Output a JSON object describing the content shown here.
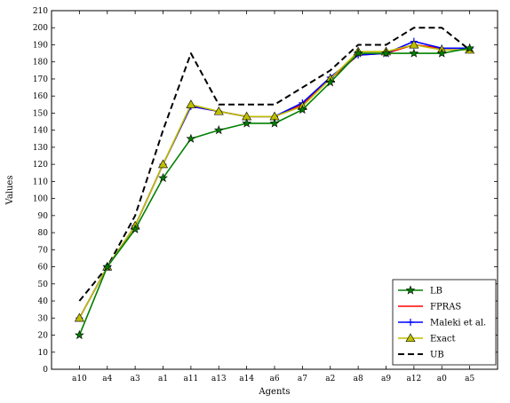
{
  "chart_data": {
    "type": "line",
    "title": "",
    "xlabel": "Agents",
    "ylabel": "Values",
    "categories": [
      "a10",
      "a4",
      "a3",
      "a1",
      "a11",
      "a13",
      "a14",
      "a6",
      "a7",
      "a2",
      "a8",
      "a9",
      "a12",
      "a0",
      "a5"
    ],
    "ylim": [
      0,
      210
    ],
    "yticks": [
      0,
      10,
      20,
      30,
      40,
      50,
      60,
      70,
      80,
      90,
      100,
      110,
      120,
      130,
      140,
      150,
      160,
      170,
      180,
      190,
      200,
      210
    ],
    "grid": false,
    "legend_position": "bottom-right",
    "series": [
      {
        "name": "LB",
        "color": "#008000",
        "marker": "star",
        "dash": "solid",
        "values": [
          20,
          60,
          82,
          112,
          135,
          140,
          144,
          144,
          152,
          168,
          185,
          185,
          185,
          185,
          188
        ]
      },
      {
        "name": "FPRAS",
        "color": "#ff0000",
        "marker": "none",
        "dash": "solid",
        "values": [
          30,
          60,
          84,
          120,
          154,
          151,
          148,
          148,
          155,
          170,
          184,
          185,
          190,
          188,
          188
        ]
      },
      {
        "name": "Maleki et al.",
        "color": "#0000ff",
        "marker": "plus",
        "dash": "solid",
        "values": [
          30,
          60,
          84,
          120,
          154,
          151,
          148,
          148,
          156,
          171,
          184,
          185,
          192,
          188,
          188
        ]
      },
      {
        "name": "Exact",
        "color": "#bfbf00",
        "marker": "triangle",
        "dash": "solid",
        "values": [
          30,
          60,
          84,
          120,
          155,
          151,
          148,
          148,
          154,
          170,
          186,
          186,
          190,
          187,
          187
        ]
      },
      {
        "name": "UB",
        "color": "#000000",
        "marker": "none",
        "dash": "dashed",
        "values": [
          40,
          60,
          90,
          140,
          185,
          155,
          155,
          155,
          165,
          175,
          190,
          190,
          200,
          200,
          187
        ]
      }
    ]
  }
}
